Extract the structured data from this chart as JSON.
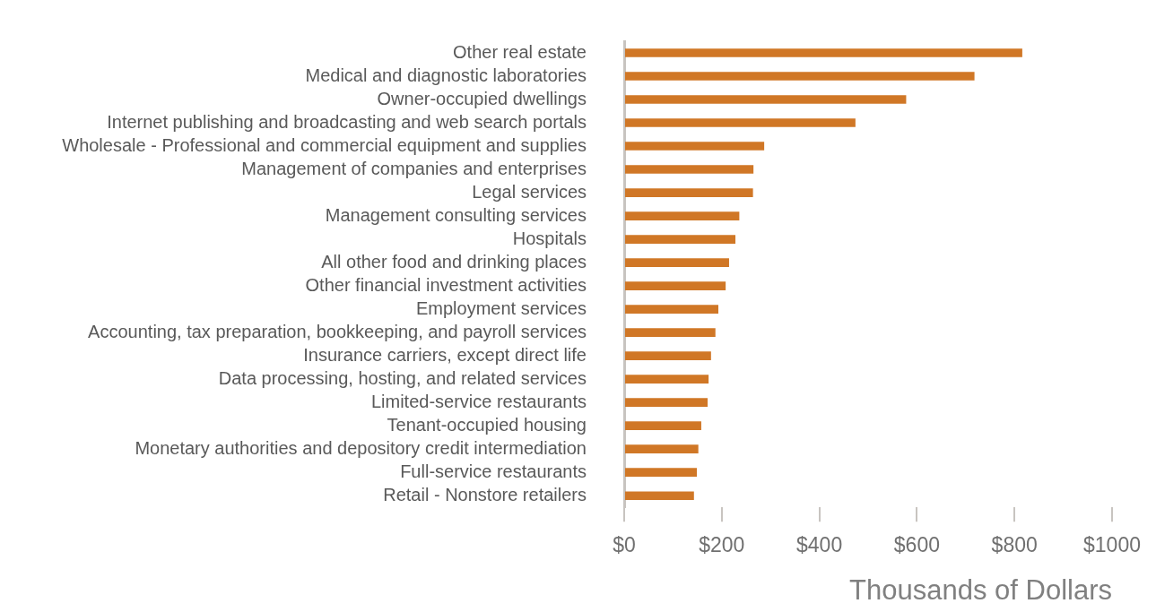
{
  "chart_data": {
    "type": "bar",
    "orientation": "horizontal",
    "xlabel": "Thousands of Dollars",
    "categories": [
      "Other real estate",
      "Medical and diagnostic laboratories",
      "Owner-occupied dwellings",
      "Internet publishing and broadcasting and web search portals",
      "Wholesale - Professional and commercial equipment and supplies",
      "Management of companies and enterprises",
      "Legal services",
      "Management consulting services",
      "Hospitals",
      "All other food and drinking places",
      "Other financial investment activities",
      "Employment services",
      "Accounting, tax preparation, bookkeeping, and payroll services",
      "Insurance carriers, except direct life",
      "Data processing, hosting, and related services",
      "Limited-service restaurants",
      "Tenant-occupied housing",
      "Monetary authorities and depository credit intermediation",
      "Full-service restaurants",
      "Retail - Nonstore retailers"
    ],
    "values": [
      816,
      718,
      578,
      474,
      287,
      265,
      264,
      236,
      228,
      215,
      208,
      193,
      187,
      178,
      173,
      171,
      158,
      152,
      149,
      143
    ],
    "color": "#d07726",
    "xlim": [
      0,
      1000
    ],
    "xticks": [
      {
        "value": 0,
        "label": "$0"
      },
      {
        "value": 200,
        "label": "$200"
      },
      {
        "value": 400,
        "label": "$400"
      },
      {
        "value": 600,
        "label": "$600"
      },
      {
        "value": 800,
        "label": "$800"
      },
      {
        "value": 1000,
        "label": "$1000"
      }
    ],
    "grid": false,
    "legend": false
  }
}
